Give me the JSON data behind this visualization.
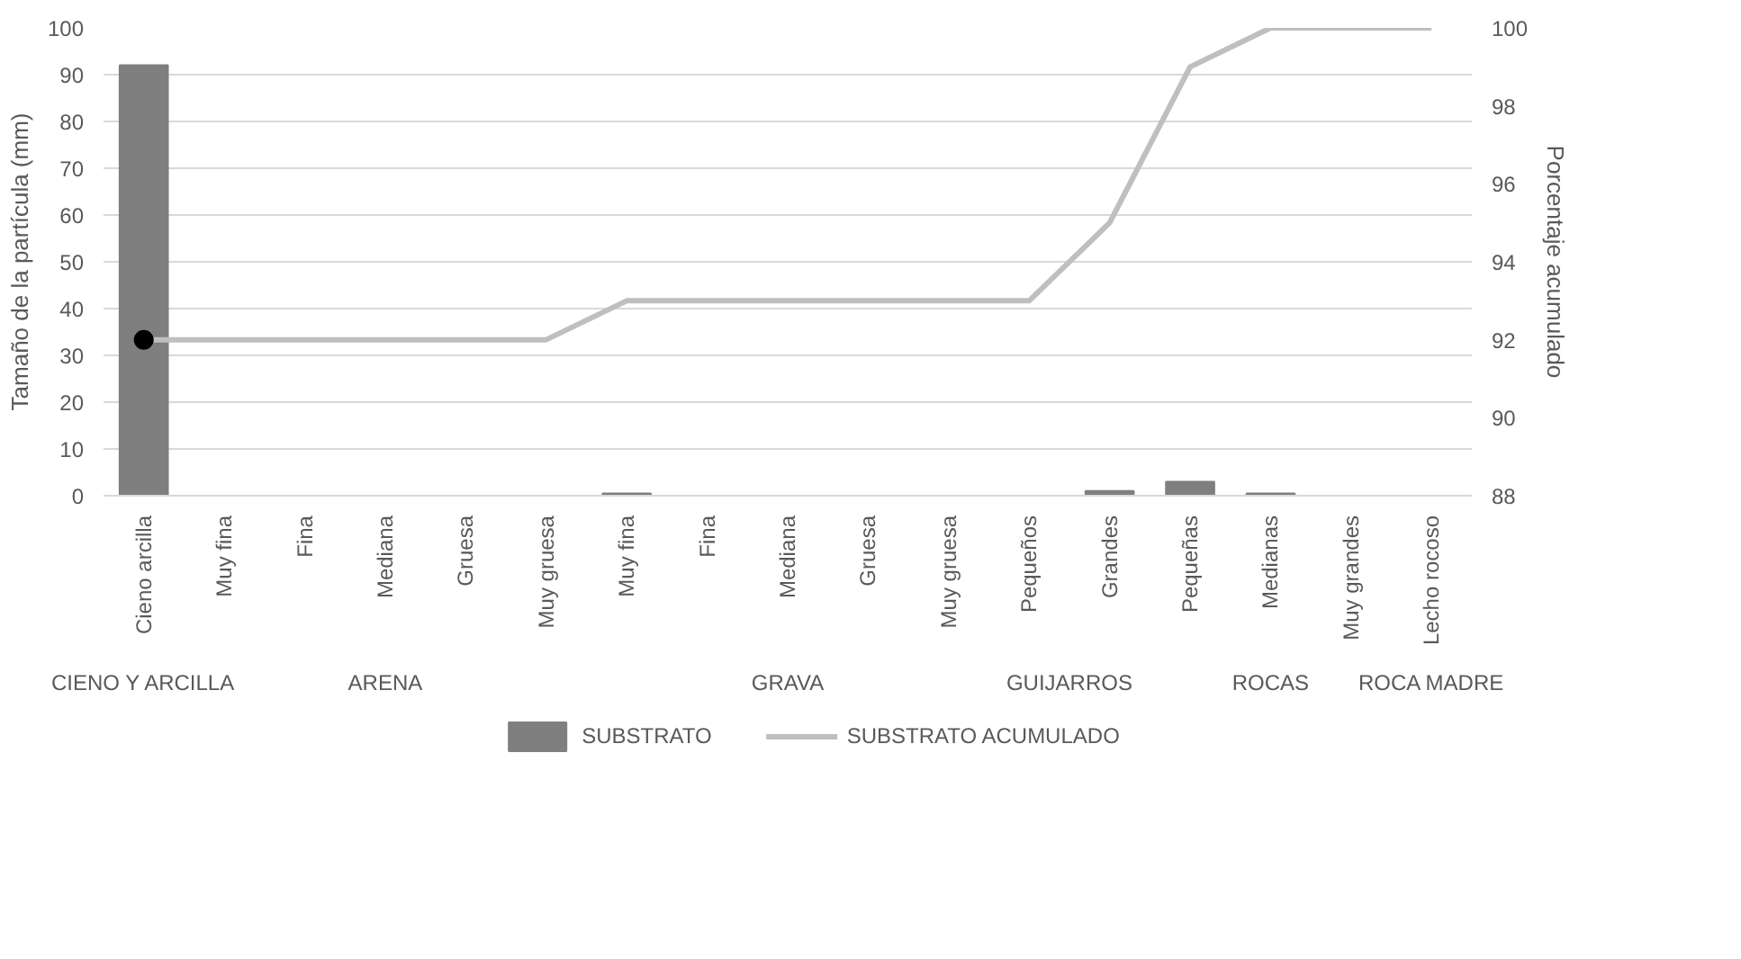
{
  "chart_data": {
    "type": "bar",
    "ylabel": "Tamaño de la partícula (mm)",
    "y2label": "Porcentaje acumulado",
    "categories": [
      "Cieno arcilla",
      "Muy fina",
      "Fina",
      "Mediana",
      "Gruesa",
      "Muy gruesa",
      "Muy fina",
      "Fina",
      "Mediana",
      "Gruesa",
      "Muy gruesa",
      "Pequeños",
      "Grandes",
      "Pequeñas",
      "Medianas",
      "Muy grandes",
      "Lecho rocoso"
    ],
    "series": [
      {
        "name": "SUBSTRATO",
        "color": "#7f7f7f",
        "values": [
          92,
          0,
          0,
          0,
          0,
          0,
          0.5,
          0,
          0,
          0,
          0,
          0,
          1,
          3,
          0.5,
          0,
          0
        ]
      },
      {
        "name": "SUBSTRATO ACUMULADO",
        "type": "line",
        "axis": "y2",
        "color": "#bfbfbf",
        "values": [
          92,
          92,
          92,
          92,
          92,
          92,
          93,
          93,
          93,
          93,
          93,
          93,
          95,
          99,
          100,
          100,
          100
        ]
      },
      {
        "type": "scatter",
        "axis": "y2",
        "marker": "circle",
        "color": "#000000",
        "values": [
          92,
          null,
          null,
          null,
          null,
          null,
          null,
          null,
          null,
          null,
          null,
          null,
          null,
          null,
          null,
          null,
          null
        ]
      }
    ],
    "annotations": [
      "CIENO Y ARCILLA",
      "ARENA",
      "GRAVA",
      "GUIJARROS",
      "ROCAS",
      "ROCA MADRE"
    ],
    "ylim": [
      0,
      100
    ],
    "yticks": [
      0,
      10,
      20,
      30,
      40,
      50,
      60,
      70,
      80,
      90,
      100
    ],
    "y2lim": [
      88,
      100
    ],
    "y2ticks": [
      88,
      90,
      92,
      94,
      96,
      98,
      100
    ],
    "grid": "y",
    "legend": "bottom"
  }
}
